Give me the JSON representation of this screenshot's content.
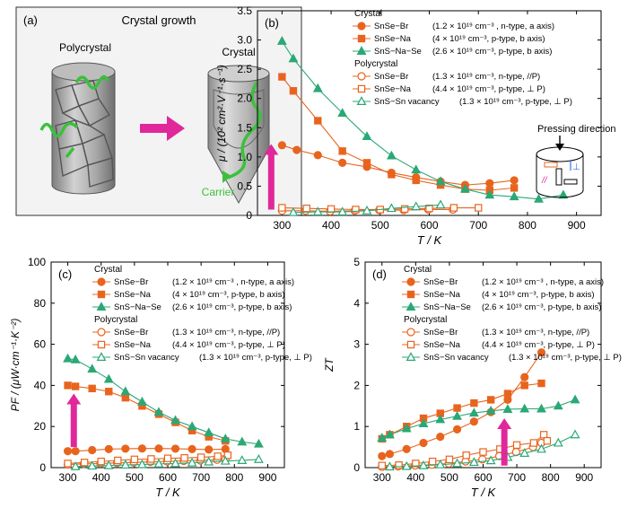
{
  "colors": {
    "orange": "#e8641e",
    "green": "#2aa876",
    "magenta": "#e0289a",
    "carrier": "#3cc03c",
    "cylinder": "#9a9a9a"
  },
  "panel_a": {
    "label": "(a)",
    "title": "Crystal growth",
    "left_label": "Polycrystal",
    "right_label": "Crystal",
    "carrier_label": "Carrier"
  },
  "legend": {
    "crystal_header": "Crystal",
    "polycrystal_header": "Polycrystal",
    "entries": [
      {
        "name": "SnSe−Br",
        "desc": "(1.2 × 10¹⁹ cm⁻³ , n-type, a axis)",
        "marker": "circle",
        "filled": true,
        "color": "#e8641e"
      },
      {
        "name": "SnSe−Na",
        "desc": "(4 × 10¹⁹ cm⁻³, p-type, b axis)",
        "marker": "square",
        "filled": true,
        "color": "#e8641e"
      },
      {
        "name": "SnS−Na−Se",
        "desc": "(2.6 × 10¹⁹ cm⁻³, p-type, b axis)",
        "marker": "triangle",
        "filled": true,
        "color": "#2aa876"
      },
      {
        "name": "SnSe−Br",
        "desc": "(1.3 × 10¹⁹ cm⁻³, n-type, //P)",
        "marker": "circle",
        "filled": false,
        "color": "#e8641e"
      },
      {
        "name": "SnSe−Na",
        "desc": "(4.4 × 10¹⁹ cm⁻³, p-type, ⊥ P)",
        "marker": "square",
        "filled": false,
        "color": "#e8641e"
      },
      {
        "name": "SnS−Sn vacancy",
        "desc": "(1.3 × 10¹⁹ cm⁻³, p-type, ⊥ P)",
        "marker": "triangle",
        "filled": false,
        "color": "#2aa876"
      }
    ]
  },
  "pressing": {
    "label": "Pressing direction",
    "parallel": "//",
    "perp": "⊥"
  },
  "chart_data": [
    {
      "type": "line",
      "panel": "(b)",
      "ylabel": "μ / (10² cm²·V⁻¹·s⁻¹)",
      "xlabel": "T / K",
      "xlim": [
        250,
        950
      ],
      "ylim": [
        0,
        3.5
      ],
      "xticks": [
        300,
        400,
        500,
        600,
        700,
        800,
        900
      ],
      "yticks": [
        0,
        0.5,
        1.0,
        1.5,
        2.0,
        2.5,
        3.0,
        3.5
      ],
      "ytick_labels": [
        "0",
        "0.5",
        "1.0",
        "1.5",
        "2.0",
        "2.5",
        "3.0",
        "3.5"
      ],
      "arrow": {
        "x": 278,
        "y_from": 0.1,
        "y_to": 1.22
      },
      "series": [
        {
          "name": "SnSe−Br (Crystal)",
          "x": [
            300,
            330,
            373,
            423,
            473,
            523,
            573,
            623,
            673,
            723,
            773
          ],
          "y": [
            1.2,
            1.12,
            1.03,
            0.9,
            0.83,
            0.73,
            0.65,
            0.58,
            0.52,
            0.55,
            0.6
          ]
        },
        {
          "name": "SnSe−Na (Crystal)",
          "x": [
            300,
            323,
            373,
            423,
            473,
            523,
            573,
            623,
            673,
            723,
            773
          ],
          "y": [
            2.37,
            2.13,
            1.62,
            1.1,
            0.9,
            0.7,
            0.6,
            0.52,
            0.45,
            0.43,
            0.47
          ]
        },
        {
          "name": "SnS−Na−Se (Crystal)",
          "x": [
            300,
            323,
            373,
            423,
            473,
            523,
            573,
            623,
            673,
            723,
            773,
            823,
            873
          ],
          "y": [
            2.98,
            2.68,
            2.17,
            1.75,
            1.35,
            1.02,
            0.78,
            0.58,
            0.45,
            0.35,
            0.32,
            0.28,
            0.35
          ]
        },
        {
          "name": "SnSe−Br (Polycrystal)",
          "x": [
            300,
            348,
            398,
            448,
            498,
            548,
            598,
            648
          ],
          "y": [
            0.08,
            0.08,
            0.07,
            0.08,
            0.09,
            0.09,
            0.1,
            0.1
          ]
        },
        {
          "name": "SnSe−Na (Polycrystal)",
          "x": [
            300,
            350,
            400,
            450,
            500,
            550,
            600,
            650,
            700
          ],
          "y": [
            0.13,
            0.12,
            0.11,
            0.1,
            0.1,
            0.11,
            0.12,
            0.13,
            0.13
          ]
        },
        {
          "name": "SnS−Sn vacancy (Polycrystal)",
          "x": [
            323,
            373,
            423,
            473,
            523,
            573,
            623
          ],
          "y": [
            0.05,
            0.06,
            0.06,
            0.08,
            0.12,
            0.15,
            0.18
          ]
        }
      ]
    },
    {
      "type": "line",
      "panel": "(c)",
      "ylabel": "PF / (μW·cm⁻¹·K⁻²)",
      "xlabel": "T / K",
      "xlim": [
        250,
        950
      ],
      "ylim": [
        0,
        100
      ],
      "xticks": [
        300,
        400,
        500,
        600,
        700,
        800,
        900
      ],
      "yticks": [
        0,
        20,
        40,
        60,
        80,
        100
      ],
      "ytick_labels": [
        "0",
        "20",
        "40",
        "60",
        "80",
        "100"
      ],
      "arrow": {
        "x": 318,
        "y_from": 10,
        "y_to": 36
      },
      "series": [
        {
          "name": "SnSe−Br (Crystal)",
          "x": [
            300,
            323,
            373,
            423,
            473,
            523,
            573,
            623,
            673,
            723,
            773
          ],
          "y": [
            8,
            8,
            8.5,
            9,
            9.2,
            9.3,
            9.3,
            9.2,
            9,
            8.8,
            9
          ]
        },
        {
          "name": "SnSe−Na (Crystal)",
          "x": [
            300,
            323,
            373,
            423,
            473,
            523,
            573,
            623,
            673,
            723,
            773
          ],
          "y": [
            40,
            39.5,
            38.5,
            37,
            34,
            30,
            26,
            22,
            18,
            15,
            13
          ]
        },
        {
          "name": "SnS−Na−Se (Crystal)",
          "x": [
            300,
            323,
            373,
            423,
            473,
            523,
            573,
            623,
            673,
            723,
            773,
            823,
            873
          ],
          "y": [
            53,
            52.5,
            48,
            43,
            37,
            32,
            27,
            23,
            20,
            17,
            14,
            12.5,
            11.5
          ]
        },
        {
          "name": "SnSe−Br (Polycrystal)",
          "x": [
            300,
            348,
            398,
            448,
            498,
            548,
            598,
            648,
            698,
            748,
            773
          ],
          "y": [
            1.5,
            1.8,
            2,
            2.3,
            2.5,
            2.8,
            3,
            3.3,
            3.5,
            3.8,
            4
          ]
        },
        {
          "name": "SnSe−Na (Polycrystal)",
          "x": [
            300,
            350,
            400,
            450,
            500,
            550,
            600,
            650,
            700,
            750,
            780
          ],
          "y": [
            2,
            2.5,
            3,
            3.5,
            4,
            4.2,
            4.5,
            4.7,
            5,
            5.5,
            6
          ]
        },
        {
          "name": "SnS−Sn vacancy (Polycrystal)",
          "x": [
            323,
            373,
            423,
            473,
            523,
            573,
            623,
            673,
            723,
            773,
            823,
            873
          ],
          "y": [
            0.5,
            0.8,
            1,
            1.3,
            1.5,
            1.8,
            2,
            2.3,
            2.8,
            3.2,
            3.5,
            4
          ]
        }
      ]
    },
    {
      "type": "line",
      "panel": "(d)",
      "ylabel": "ZT",
      "xlabel": "T / K",
      "xlim": [
        250,
        950
      ],
      "ylim": [
        0,
        5
      ],
      "xticks": [
        300,
        400,
        500,
        600,
        700,
        800,
        900
      ],
      "yticks": [
        0,
        1,
        2,
        3,
        4,
        5
      ],
      "ytick_labels": [
        "0",
        "1",
        "2",
        "3",
        "4",
        "5"
      ],
      "arrow": {
        "x": 663,
        "y_from": 0.05,
        "y_to": 1.2
      },
      "series": [
        {
          "name": "SnSe−Br (Crystal)",
          "x": [
            300,
            323,
            373,
            423,
            473,
            523,
            573,
            623,
            673,
            723,
            773
          ],
          "y": [
            0.28,
            0.33,
            0.45,
            0.6,
            0.75,
            0.93,
            1.12,
            1.35,
            1.65,
            2.2,
            2.8
          ]
        },
        {
          "name": "SnSe−Na (Crystal)",
          "x": [
            300,
            323,
            373,
            423,
            473,
            523,
            573,
            623,
            673,
            723,
            773
          ],
          "y": [
            0.7,
            0.8,
            1.0,
            1.2,
            1.32,
            1.45,
            1.57,
            1.65,
            1.8,
            2.0,
            2.05
          ]
        },
        {
          "name": "SnS−Na−Se (Crystal)",
          "x": [
            300,
            323,
            373,
            423,
            473,
            523,
            573,
            623,
            673,
            723,
            773,
            823,
            873
          ],
          "y": [
            0.72,
            0.8,
            0.95,
            1.07,
            1.17,
            1.25,
            1.33,
            1.38,
            1.42,
            1.43,
            1.43,
            1.5,
            1.65
          ]
        },
        {
          "name": "SnSe−Br (Polycrystal)",
          "x": [
            300,
            348,
            398,
            448,
            498,
            548,
            598,
            648,
            698,
            748,
            773
          ],
          "y": [
            0.02,
            0.03,
            0.05,
            0.07,
            0.1,
            0.15,
            0.2,
            0.28,
            0.38,
            0.5,
            0.6
          ]
        },
        {
          "name": "SnSe−Na (Polycrystal)",
          "x": [
            300,
            350,
            400,
            450,
            500,
            550,
            600,
            650,
            700,
            750,
            780,
            790
          ],
          "y": [
            0.05,
            0.06,
            0.1,
            0.15,
            0.2,
            0.3,
            0.38,
            0.45,
            0.55,
            0.6,
            0.8,
            0.65
          ]
        },
        {
          "name": "SnS−Sn vacancy (Polycrystal)",
          "x": [
            323,
            373,
            423,
            473,
            523,
            573,
            623,
            673,
            723,
            773,
            823,
            873
          ],
          "y": [
            0.02,
            0.03,
            0.05,
            0.07,
            0.1,
            0.13,
            0.17,
            0.25,
            0.35,
            0.45,
            0.6,
            0.8
          ]
        }
      ]
    }
  ]
}
